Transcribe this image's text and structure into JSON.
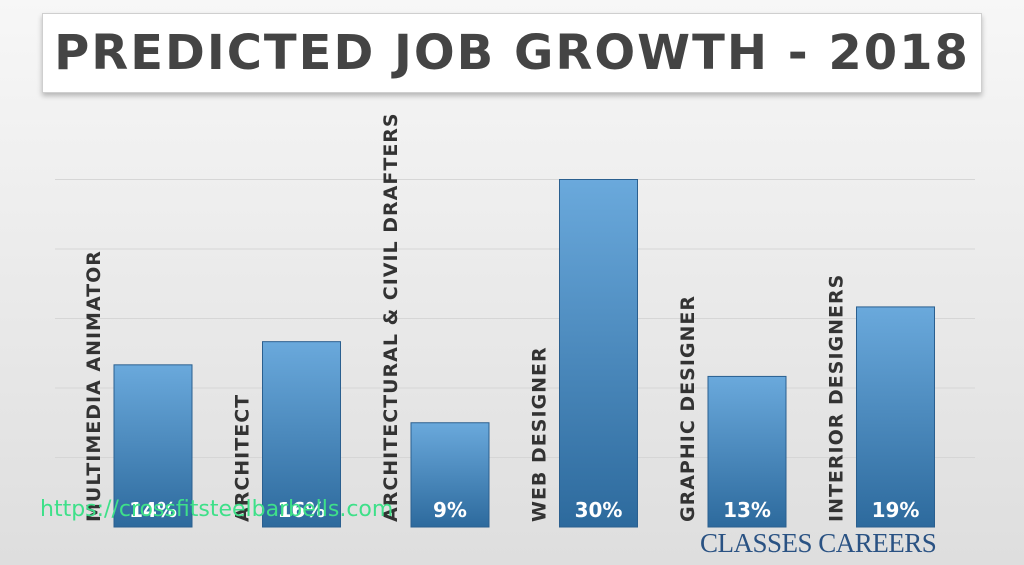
{
  "chart_data": {
    "type": "bar",
    "title": "PREDICTED JOB GROWTH - 2018",
    "categories": [
      "MULTIMEDIA ANIMATOR",
      "ARCHITECT",
      "ARCHITECTURAL & CIVIL DRAFTERS",
      "WEB DESIGNER",
      "GRAPHIC DESIGNER",
      "INTERIOR DESIGNERS"
    ],
    "values": [
      14,
      16,
      9,
      30,
      13,
      19
    ],
    "data_labels": [
      "14%",
      "16%",
      "9%",
      "30%",
      "13%",
      "19%"
    ],
    "unit": "%",
    "ylim": [
      0,
      36
    ],
    "grid": true,
    "xlabel": "",
    "ylabel": "",
    "colors": {
      "bar_top": "#6aa9dc",
      "bar_bottom": "#2d6a9d",
      "label": "#ffffff",
      "category_text": "#333333",
      "grid": "#d6d6d6"
    }
  },
  "watermark": "https://crossfitsteelbarbells.com",
  "brand": "CLASSES CAREERS"
}
